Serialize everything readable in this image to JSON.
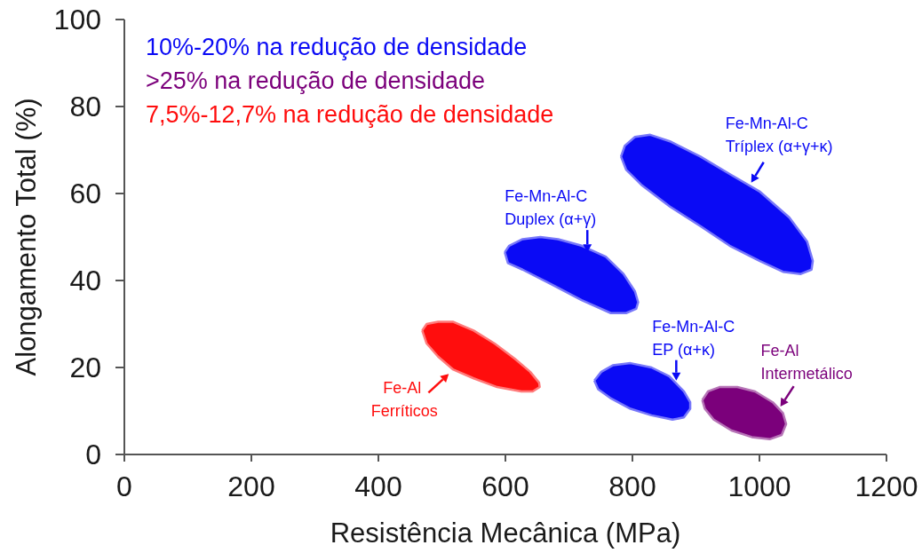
{
  "chart_data": {
    "type": "area",
    "xlabel": "Resistência Mecânica (MPa)",
    "ylabel": "Alongamento Total (%)",
    "xlim": [
      0,
      1200
    ],
    "ylim": [
      0,
      100
    ],
    "xticks": [
      0,
      200,
      400,
      600,
      800,
      1000,
      1200
    ],
    "yticks": [
      0,
      20,
      40,
      60,
      80,
      100
    ],
    "legend": "top left",
    "series": [
      {
        "name": "10%-20% na redução de densidade",
        "color": "#0a0af5",
        "x": [
          599,
          606,
          627,
          655,
          683,
          720,
          758,
          786,
          804,
          809,
          806,
          790,
          766,
          720,
          674,
          627,
          604
        ],
        "values": [
          46.5,
          48,
          49.5,
          50,
          49.5,
          48,
          45.5,
          41.5,
          37.5,
          35,
          33.5,
          32.5,
          32.5,
          35.5,
          39,
          42.5,
          44
        ]
      },
      {
        "name": ">25% na redução de densidade",
        "color": "#7b007b",
        "x": [
          910,
          919,
          937,
          965,
          993,
          1021,
          1037,
          1042,
          1035,
          1016,
          988,
          956,
          928,
          914
        ],
        "values": [
          12.5,
          14.5,
          15.5,
          15.5,
          14.5,
          12,
          9.5,
          7,
          4.5,
          3.5,
          4,
          5.5,
          8,
          10.5
        ]
      },
      {
        "name": "7,5%-12,7% na redução de densidade",
        "color": "#ff0d0d",
        "x": [
          469,
          476,
          494,
          518,
          550,
          583,
          615,
          639,
          653,
          654,
          643,
          625,
          587,
          550,
          518,
          494,
          476
        ],
        "values": [
          28.5,
          30,
          30.5,
          30.5,
          28.5,
          25.5,
          22,
          19,
          16.5,
          15.5,
          14.5,
          14.5,
          15.5,
          17.5,
          19.5,
          22.5,
          25.5
        ]
      },
      {
        "color": "#0a0af5",
        "x": [
          782,
          788,
          804,
          828,
          859,
          907,
          953,
          1000,
          1047,
          1075,
          1084,
          1082,
          1065,
          1037,
          1000,
          953,
          907,
          859,
          814,
          790
        ],
        "values": [
          68.5,
          71,
          73,
          73.5,
          72,
          68.5,
          64.5,
          60.5,
          54.5,
          49,
          44.5,
          42.5,
          41.5,
          42,
          44.5,
          48,
          52.5,
          57,
          62,
          65.5
        ]
      },
      {
        "color": "#0a0af5",
        "x": [
          740,
          751,
          769,
          797,
          830,
          858,
          881,
          891,
          891,
          881,
          863,
          830,
          797,
          765,
          746
        ],
        "values": [
          17,
          19,
          20.5,
          21,
          20,
          18,
          14.5,
          12,
          10.5,
          8.5,
          8,
          9,
          10.5,
          13,
          15
        ]
      }
    ],
    "annotations": [
      {
        "text": "Fe-Mn-Al-C Tríplex (α+γ+κ)",
        "x": 987,
        "y": 62.5
      },
      {
        "text": "Fe-Mn-Al-C Duplex (α+γ)",
        "x": 729,
        "y": 46.5
      },
      {
        "text": "Fe-Mn-Al-C EP (α+κ)",
        "x": 869,
        "y": 17
      },
      {
        "text": "Fe-Al Intermetálico",
        "x": 1033,
        "y": 11
      },
      {
        "text": "Fe-Al Ferríticos",
        "x": 518,
        "y": 19.5
      }
    ]
  }
}
